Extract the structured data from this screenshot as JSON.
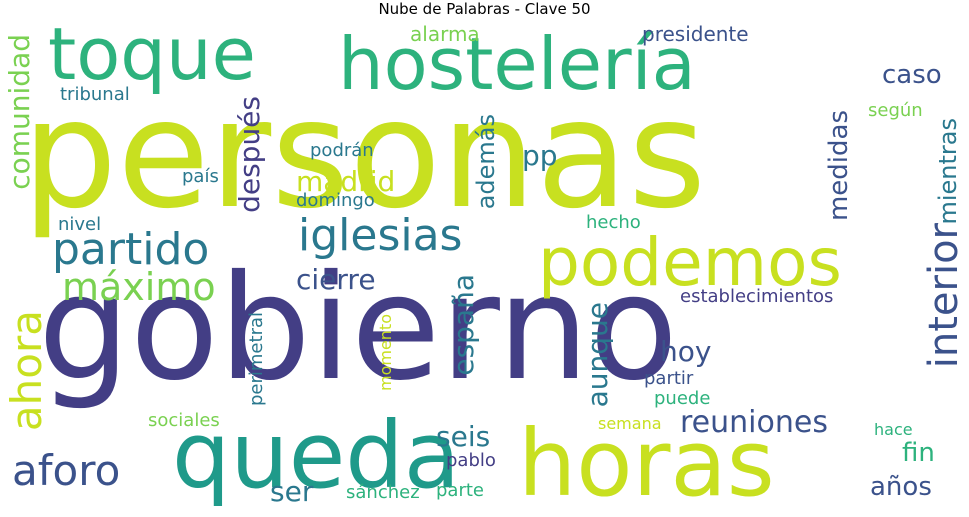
{
  "title": "Nube de Palabras - Clave 50",
  "words": {
    "personas": "personas",
    "gobierno": "gobierno",
    "horas": "horas",
    "queda": "queda",
    "podemos": "podemos",
    "hosteleria": "hostelería",
    "toque": "toque",
    "partido": "partido",
    "iglesias": "iglesias",
    "maximo": "máximo",
    "aforo": "aforo",
    "ahora": "ahora",
    "interior": "interior",
    "reuniones": "reuniones",
    "comunidad": "comunidad",
    "despues": "después",
    "madrid": "madrid",
    "cierre": "cierre",
    "espana": "españa",
    "aunque": "aunque",
    "hoy": "hoy",
    "seis": "seis",
    "ser": "ser",
    "pp": "pp",
    "caso": "caso",
    "medidas": "medidas",
    "mientras": "mientras",
    "ademas": "además",
    "fin": "fin",
    "anos": "años",
    "establecimientos": "establecimientos",
    "presidente": "presidente",
    "alarma": "alarma",
    "tribunal": "tribunal",
    "segun": "según",
    "podran": "podrán",
    "pais": "país",
    "domingo": "domingo",
    "nivel": "nivel",
    "hecho": "hecho",
    "perimetral": "perimetral",
    "momento": "momento",
    "sociales": "sociales",
    "partir": "partir",
    "puede": "puede",
    "semana": "semana",
    "hace": "hace",
    "pablo": "pablo",
    "sanchez": "sánchez",
    "parte": "parte"
  },
  "colors": {
    "purple": "#433e85",
    "teal": "#2a788e",
    "green": "#2db27d",
    "yellow": "#c8e020",
    "lime": "#7ad151",
    "darkblue": "#3b528b"
  }
}
